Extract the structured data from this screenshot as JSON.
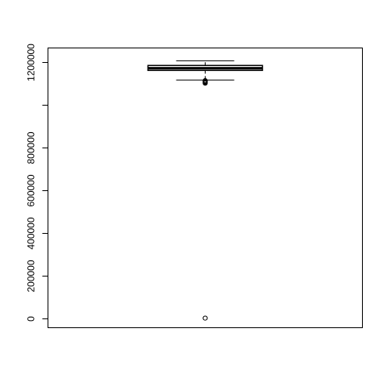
{
  "chart_data": {
    "type": "box",
    "title": "",
    "xlabel": "",
    "ylabel": "",
    "ylim": [
      -45000,
      1265000
    ],
    "yticks": [
      0,
      200000,
      400000,
      600000,
      800000,
      1000000,
      1200000
    ],
    "ytick_labels": [
      "0",
      "200000",
      "400000",
      "600000",
      "800000",
      "",
      "1200000"
    ],
    "grid": false,
    "legend": "none",
    "box": {
      "whisker_low": 1115000,
      "q1": 1160000,
      "median": 1170000,
      "q3": 1183000,
      "whisker_high": 1205000,
      "outliers": [
        0,
        1100000,
        1102000,
        1104000,
        1106000,
        1108000,
        1110000,
        1112000
      ]
    }
  }
}
